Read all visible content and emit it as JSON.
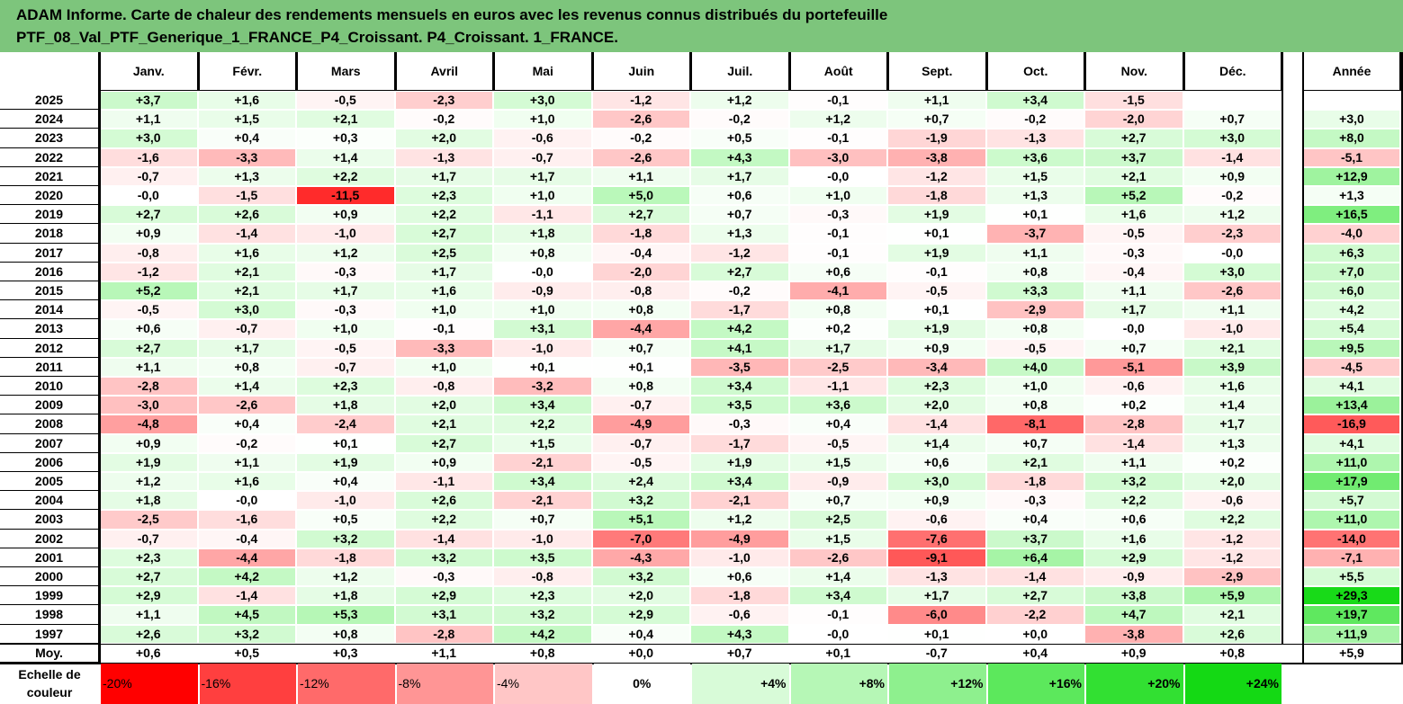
{
  "header": {
    "line1": "ADAM Informe. Carte de chaleur des rendements mensuels en euros avec les revenus connus distribués du portefeuille",
    "line2": "PTF_08_Val_PTF_Generique_1_FRANCE_P4_Croissant. P4_Croissant. 1_FRANCE."
  },
  "colors": {
    "header_bg": "#7dc57c",
    "scale": [
      "#ff0000",
      "#ff3f3f",
      "#ff6a6a",
      "#ff9595",
      "#ffc6c6",
      "#ffffff",
      "#d8fbd8",
      "#b6f7b6",
      "#8ef08e",
      "#5ce85c",
      "#32e032",
      "#14d914"
    ]
  },
  "chart_data": {
    "type": "heatmap",
    "title": "ADAM Informe. Carte de chaleur des rendements mensuels en euros avec les revenus connus distribués du portefeuille PTF_08_Val_PTF_Generique_1_FRANCE_P4_Croissant. P4_Croissant. 1_FRANCE.",
    "months": [
      "Janv.",
      "Févr.",
      "Mars",
      "Avril",
      "Mai",
      "Juin",
      "Juil.",
      "Août",
      "Sept.",
      "Oct.",
      "Nov.",
      "Déc."
    ],
    "year_header": "Année",
    "rows": [
      {
        "year": "2025",
        "values": [
          "+3,7",
          "+1,6",
          "-0,5",
          "-2,3",
          "+3,0",
          "-1,2",
          "+1,2",
          "-0,1",
          "+1,1",
          "+3,4",
          "-1,5",
          ""
        ],
        "annual": ""
      },
      {
        "year": "2024",
        "values": [
          "+1,1",
          "+1,5",
          "+2,1",
          "-0,2",
          "+1,0",
          "-2,6",
          "-0,2",
          "+1,2",
          "+0,7",
          "-0,2",
          "-2,0",
          "+0,7"
        ],
        "annual": "+3,0"
      },
      {
        "year": "2023",
        "values": [
          "+3,0",
          "+0,4",
          "+0,3",
          "+2,0",
          "-0,6",
          "-0,2",
          "+0,5",
          "-0,1",
          "-1,9",
          "-1,3",
          "+2,7",
          "+3,0"
        ],
        "annual": "+8,0"
      },
      {
        "year": "2022",
        "values": [
          "-1,6",
          "-3,3",
          "+1,4",
          "-1,3",
          "-0,7",
          "-2,6",
          "+4,3",
          "-3,0",
          "-3,8",
          "+3,6",
          "+3,7",
          "-1,4"
        ],
        "annual": "-5,1"
      },
      {
        "year": "2021",
        "values": [
          "-0,7",
          "+1,3",
          "+2,2",
          "+1,7",
          "+1,7",
          "+1,1",
          "+1,7",
          "-0,0",
          "-1,2",
          "+1,5",
          "+2,1",
          "+0,9"
        ],
        "annual": "+12,9"
      },
      {
        "year": "2020",
        "values": [
          "-0,0",
          "-1,5",
          "-11,5",
          "+2,3",
          "+1,0",
          "+5,0",
          "+0,6",
          "+1,0",
          "-1,8",
          "+1,3",
          "+5,2",
          "-0,2"
        ],
        "annual": "+1,3"
      },
      {
        "year": "2019",
        "values": [
          "+2,7",
          "+2,6",
          "+0,9",
          "+2,2",
          "-1,1",
          "+2,7",
          "+0,7",
          "-0,3",
          "+1,9",
          "+0,1",
          "+1,6",
          "+1,2"
        ],
        "annual": "+16,5"
      },
      {
        "year": "2018",
        "values": [
          "+0,9",
          "-1,4",
          "-1,0",
          "+2,7",
          "+1,8",
          "-1,8",
          "+1,3",
          "-0,1",
          "+0,1",
          "-3,7",
          "-0,5",
          "-2,3"
        ],
        "annual": "-4,0"
      },
      {
        "year": "2017",
        "values": [
          "-0,8",
          "+1,6",
          "+1,2",
          "+2,5",
          "+0,8",
          "-0,4",
          "-1,2",
          "-0,1",
          "+1,9",
          "+1,1",
          "-0,3",
          "-0,0"
        ],
        "annual": "+6,3"
      },
      {
        "year": "2016",
        "values": [
          "-1,2",
          "+2,1",
          "-0,3",
          "+1,7",
          "-0,0",
          "-2,0",
          "+2,7",
          "+0,6",
          "-0,1",
          "+0,8",
          "-0,4",
          "+3,0"
        ],
        "annual": "+7,0"
      },
      {
        "year": "2015",
        "values": [
          "+5,2",
          "+2,1",
          "+1,7",
          "+1,6",
          "-0,9",
          "-0,8",
          "-0,2",
          "-4,1",
          "-0,5",
          "+3,3",
          "+1,1",
          "-2,6"
        ],
        "annual": "+6,0"
      },
      {
        "year": "2014",
        "values": [
          "-0,5",
          "+3,0",
          "-0,3",
          "+1,0",
          "+1,0",
          "+0,8",
          "-1,7",
          "+0,8",
          "+0,1",
          "-2,9",
          "+1,7",
          "+1,1"
        ],
        "annual": "+4,2"
      },
      {
        "year": "2013",
        "values": [
          "+0,6",
          "-0,7",
          "+1,0",
          "-0,1",
          "+3,1",
          "-4,4",
          "+4,2",
          "+0,2",
          "+1,9",
          "+0,8",
          "-0,0",
          "-1,0"
        ],
        "annual": "+5,4"
      },
      {
        "year": "2012",
        "values": [
          "+2,7",
          "+1,7",
          "-0,5",
          "-3,3",
          "-1,0",
          "+0,7",
          "+4,1",
          "+1,7",
          "+0,9",
          "-0,5",
          "+0,7",
          "+2,1"
        ],
        "annual": "+9,5"
      },
      {
        "year": "2011",
        "values": [
          "+1,1",
          "+0,8",
          "-0,7",
          "+1,0",
          "+0,1",
          "+0,1",
          "-3,5",
          "-2,5",
          "-3,4",
          "+4,0",
          "-5,1",
          "+3,9"
        ],
        "annual": "-4,5"
      },
      {
        "year": "2010",
        "values": [
          "-2,8",
          "+1,4",
          "+2,3",
          "-0,8",
          "-3,2",
          "+0,8",
          "+3,4",
          "-1,1",
          "+2,3",
          "+1,0",
          "-0,6",
          "+1,6"
        ],
        "annual": "+4,1"
      },
      {
        "year": "2009",
        "values": [
          "-3,0",
          "-2,6",
          "+1,8",
          "+2,0",
          "+3,4",
          "-0,7",
          "+3,5",
          "+3,6",
          "+2,0",
          "+0,8",
          "+0,2",
          "+1,4"
        ],
        "annual": "+13,4"
      },
      {
        "year": "2008",
        "values": [
          "-4,8",
          "+0,4",
          "-2,4",
          "+2,1",
          "+2,2",
          "-4,9",
          "-0,3",
          "+0,4",
          "-1,4",
          "-8,1",
          "-2,8",
          "+1,7"
        ],
        "annual": "-16,9"
      },
      {
        "year": "2007",
        "values": [
          "+0,9",
          "-0,2",
          "+0,1",
          "+2,7",
          "+1,5",
          "-0,7",
          "-1,7",
          "-0,5",
          "+1,4",
          "+0,7",
          "-1,4",
          "+1,3"
        ],
        "annual": "+4,1"
      },
      {
        "year": "2006",
        "values": [
          "+1,9",
          "+1,1",
          "+1,9",
          "+0,9",
          "-2,1",
          "-0,5",
          "+1,9",
          "+1,5",
          "+0,6",
          "+2,1",
          "+1,1",
          "+0,2"
        ],
        "annual": "+11,0"
      },
      {
        "year": "2005",
        "values": [
          "+1,2",
          "+1,6",
          "+0,4",
          "-1,1",
          "+3,4",
          "+2,4",
          "+3,4",
          "-0,9",
          "+3,0",
          "-1,8",
          "+3,2",
          "+2,0"
        ],
        "annual": "+17,9"
      },
      {
        "year": "2004",
        "values": [
          "+1,8",
          "-0,0",
          "-1,0",
          "+2,6",
          "-2,1",
          "+3,2",
          "-2,1",
          "+0,7",
          "+0,9",
          "-0,3",
          "+2,2",
          "-0,6"
        ],
        "annual": "+5,7"
      },
      {
        "year": "2003",
        "values": [
          "-2,5",
          "-1,6",
          "+0,5",
          "+2,2",
          "+0,7",
          "+5,1",
          "+1,2",
          "+2,5",
          "-0,6",
          "+0,4",
          "+0,6",
          "+2,2"
        ],
        "annual": "+11,0"
      },
      {
        "year": "2002",
        "values": [
          "-0,7",
          "-0,4",
          "+3,2",
          "-1,4",
          "-1,0",
          "-7,0",
          "-4,9",
          "+1,5",
          "-7,6",
          "+3,7",
          "+1,6",
          "-1,2"
        ],
        "annual": "-14,0"
      },
      {
        "year": "2001",
        "values": [
          "+2,3",
          "-4,4",
          "-1,8",
          "+3,2",
          "+3,5",
          "-4,3",
          "-1,0",
          "-2,6",
          "-9,1",
          "+6,4",
          "+2,9",
          "-1,2"
        ],
        "annual": "-7,1"
      },
      {
        "year": "2000",
        "values": [
          "+2,7",
          "+4,2",
          "+1,2",
          "-0,3",
          "-0,8",
          "+3,2",
          "+0,6",
          "+1,4",
          "-1,3",
          "-1,4",
          "-0,9",
          "-2,9"
        ],
        "annual": "+5,5"
      },
      {
        "year": "1999",
        "values": [
          "+2,9",
          "-1,4",
          "+1,8",
          "+2,9",
          "+2,3",
          "+2,0",
          "-1,8",
          "+3,4",
          "+1,7",
          "+2,7",
          "+3,8",
          "+5,9"
        ],
        "annual": "+29,3"
      },
      {
        "year": "1998",
        "values": [
          "+1,1",
          "+4,5",
          "+5,3",
          "+3,1",
          "+3,2",
          "+2,9",
          "-0,6",
          "-0,1",
          "-6,0",
          "-2,2",
          "+4,7",
          "+2,1"
        ],
        "annual": "+19,7"
      },
      {
        "year": "1997",
        "values": [
          "+2,6",
          "+3,2",
          "+0,8",
          "-2,8",
          "+4,2",
          "+0,4",
          "+4,3",
          "-0,0",
          "+0,1",
          "+0,0",
          "-3,8",
          "+2,6"
        ],
        "annual": "+11,9"
      }
    ],
    "average": {
      "label": "Moy.",
      "values": [
        "+0,6",
        "+0,5",
        "+0,3",
        "+1,1",
        "+0,8",
        "+0,0",
        "+0,7",
        "+0,1",
        "-0,7",
        "+0,4",
        "+0,9",
        "+0,8"
      ],
      "annual": "+5,9"
    },
    "scale": {
      "label_line1": "Echelle de",
      "label_line2": "couleur",
      "steps": [
        "-20%",
        "-16%",
        "-12%",
        "-8%",
        "-4%",
        "0%",
        "+4%",
        "+8%",
        "+12%",
        "+16%",
        "+20%",
        "+24%"
      ]
    }
  }
}
